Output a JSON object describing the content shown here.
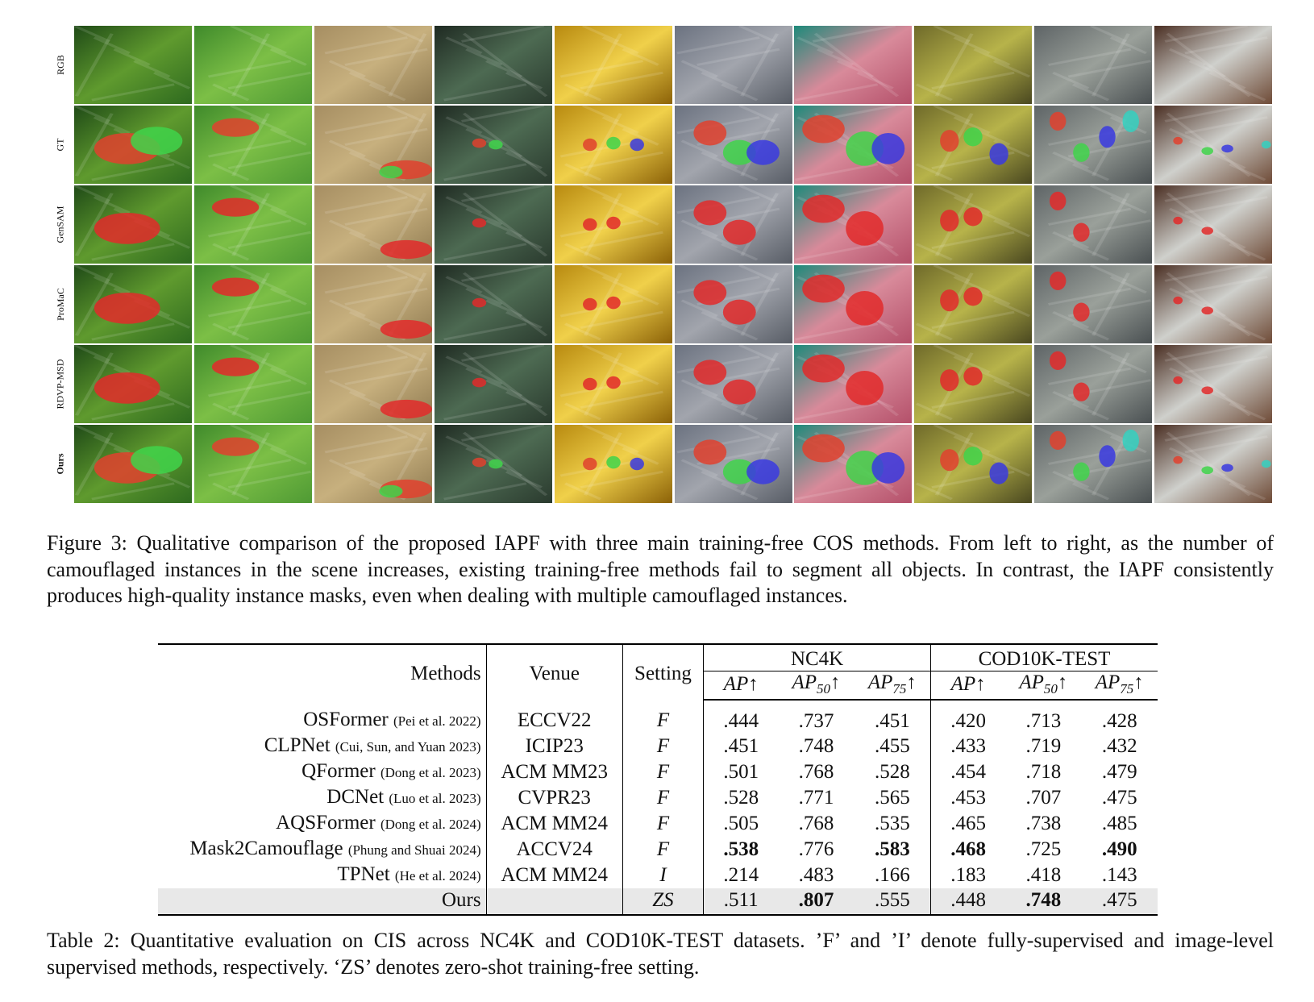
{
  "figure": {
    "rows": [
      "RGB",
      "GT",
      "GenSAM",
      "ProMaC",
      "RDVP-MSD",
      "Ours"
    ],
    "columns": [
      {
        "bg": [
          "#1f4a17",
          "#5f9a2e",
          "#2e6a1f"
        ],
        "blobs": [
          [
            0.45,
            0.55,
            0.28,
            0.2
          ],
          [
            0.7,
            0.45,
            0.22,
            0.18
          ]
        ]
      },
      {
        "bg": [
          "#3f8a2b",
          "#7cbf46",
          "#4f9a34"
        ],
        "blobs": [
          [
            0.35,
            0.28,
            0.2,
            0.12
          ]
        ]
      },
      {
        "bg": [
          "#a68e62",
          "#c7b07e",
          "#8e7950"
        ],
        "blobs": [
          [
            0.78,
            0.82,
            0.22,
            0.12
          ],
          [
            0.65,
            0.85,
            0.1,
            0.08
          ]
        ]
      },
      {
        "bg": [
          "#1f2a22",
          "#4d6a52",
          "#2a3a2e"
        ],
        "blobs": [
          [
            0.38,
            0.48,
            0.06,
            0.06
          ],
          [
            0.52,
            0.5,
            0.06,
            0.06
          ]
        ]
      },
      {
        "bg": [
          "#b88a10",
          "#f0d04a",
          "#8c6208"
        ],
        "blobs": [
          [
            0.3,
            0.5,
            0.06,
            0.08
          ],
          [
            0.5,
            0.48,
            0.06,
            0.08
          ],
          [
            0.7,
            0.5,
            0.06,
            0.08
          ]
        ]
      },
      {
        "bg": [
          "#6b7280",
          "#a2a5ad",
          "#585d66"
        ],
        "blobs": [
          [
            0.3,
            0.35,
            0.14,
            0.16
          ],
          [
            0.55,
            0.6,
            0.14,
            0.16
          ],
          [
            0.75,
            0.6,
            0.14,
            0.16
          ]
        ]
      },
      {
        "bg": [
          "#1d8a7a",
          "#d88a9a",
          "#b4506a"
        ],
        "blobs": [
          [
            0.25,
            0.3,
            0.18,
            0.18
          ],
          [
            0.6,
            0.55,
            0.16,
            0.22
          ],
          [
            0.8,
            0.55,
            0.14,
            0.2
          ]
        ]
      },
      {
        "bg": [
          "#6f6a2a",
          "#b7b34a",
          "#4a4820"
        ],
        "blobs": [
          [
            0.3,
            0.45,
            0.08,
            0.14
          ],
          [
            0.5,
            0.4,
            0.08,
            0.12
          ],
          [
            0.72,
            0.62,
            0.08,
            0.14
          ]
        ]
      },
      {
        "bg": [
          "#5e6466",
          "#9aa09a",
          "#4a5052"
        ],
        "blobs": [
          [
            0.2,
            0.2,
            0.07,
            0.12
          ],
          [
            0.4,
            0.6,
            0.07,
            0.12
          ],
          [
            0.62,
            0.4,
            0.07,
            0.14
          ],
          [
            0.82,
            0.2,
            0.07,
            0.14
          ]
        ]
      },
      {
        "bg": [
          "#4a2e22",
          "#cfd0cc",
          "#6e4a36"
        ],
        "blobs": [
          [
            0.2,
            0.45,
            0.04,
            0.05
          ],
          [
            0.45,
            0.58,
            0.05,
            0.05
          ],
          [
            0.62,
            0.55,
            0.05,
            0.05
          ],
          [
            0.95,
            0.5,
            0.04,
            0.05
          ]
        ]
      }
    ],
    "mask_palettes": {
      "GT": [
        "#e0412e",
        "#3fd34a",
        "#3a3ae0",
        "#34d0c0",
        "#d040d0"
      ],
      "GenSAM": [
        "#e22a2a"
      ],
      "ProMaC": [
        "#e22a2a"
      ],
      "RDVP-MSD": [
        "#e22a2a"
      ],
      "Ours": [
        "#e0412e",
        "#3fd34a",
        "#3a3ae0",
        "#34d0c0",
        "#d040d0"
      ]
    },
    "caption": "Figure 3: Qualitative comparison of the proposed IAPF with three main training-free COS methods. From left to right, as the number of camouflaged instances in the scene increases, existing training-free methods fail to segment all objects. In contrast, the IAPF consistently produces high-quality instance masks, even when dealing with multiple camouflaged instances."
  },
  "table": {
    "headers": {
      "methods": "Methods",
      "venue": "Venue",
      "setting": "Setting",
      "group1": "NC4K",
      "group2": "COD10K-TEST",
      "ap": "AP↑",
      "ap50_base": "AP",
      "ap50_sub": "50",
      "ap75_base": "AP",
      "ap75_sub": "75",
      "arrow": "↑"
    },
    "rows": [
      {
        "method": "OSFormer",
        "cite": "(Pei et al. 2022)",
        "venue": "ECCV22",
        "setting": "F",
        "vals": [
          ".444",
          ".737",
          ".451",
          ".420",
          ".713",
          ".428"
        ],
        "bold": []
      },
      {
        "method": "CLPNet",
        "cite": "(Cui, Sun, and Yuan 2023)",
        "venue": "ICIP23",
        "setting": "F",
        "vals": [
          ".451",
          ".748",
          ".455",
          ".433",
          ".719",
          ".432"
        ],
        "bold": []
      },
      {
        "method": "QFormer",
        "cite": "(Dong et al. 2023)",
        "venue": "ACM MM23",
        "setting": "F",
        "vals": [
          ".501",
          ".768",
          ".528",
          ".454",
          ".718",
          ".479"
        ],
        "bold": []
      },
      {
        "method": "DCNet",
        "cite": "(Luo et al. 2023)",
        "venue": "CVPR23",
        "setting": "F",
        "vals": [
          ".528",
          ".771",
          ".565",
          ".453",
          ".707",
          ".475"
        ],
        "bold": []
      },
      {
        "method": "AQSFormer",
        "cite": "(Dong et al. 2024)",
        "venue": "ACM MM24",
        "setting": "F",
        "vals": [
          ".505",
          ".768",
          ".535",
          ".465",
          ".738",
          ".485"
        ],
        "bold": []
      },
      {
        "method": "Mask2Camouflage",
        "cite": "(Phung and Shuai 2024)",
        "venue": "ACCV24",
        "setting": "F",
        "vals": [
          ".538",
          ".776",
          ".583",
          ".468",
          ".725",
          ".490"
        ],
        "bold": [
          0,
          2,
          3,
          5
        ]
      },
      {
        "method": "TPNet",
        "cite": "(He et al. 2024)",
        "venue": "ACM MM24",
        "setting": "I",
        "vals": [
          ".214",
          ".483",
          ".166",
          ".183",
          ".418",
          ".143"
        ],
        "bold": []
      },
      {
        "method": "Ours",
        "cite": "",
        "venue": "",
        "setting": "ZS",
        "vals": [
          ".511",
          ".807",
          ".555",
          ".448",
          ".748",
          ".475"
        ],
        "bold": [
          1,
          4
        ],
        "highlight": true
      }
    ],
    "caption": "Table 2: Quantitative evaluation on CIS across NC4K and COD10K-TEST datasets. ’F’ and ’I’ denote fully-supervised and image-level supervised methods, respectively. ‘ZS’ denotes zero-shot training-free setting."
  }
}
